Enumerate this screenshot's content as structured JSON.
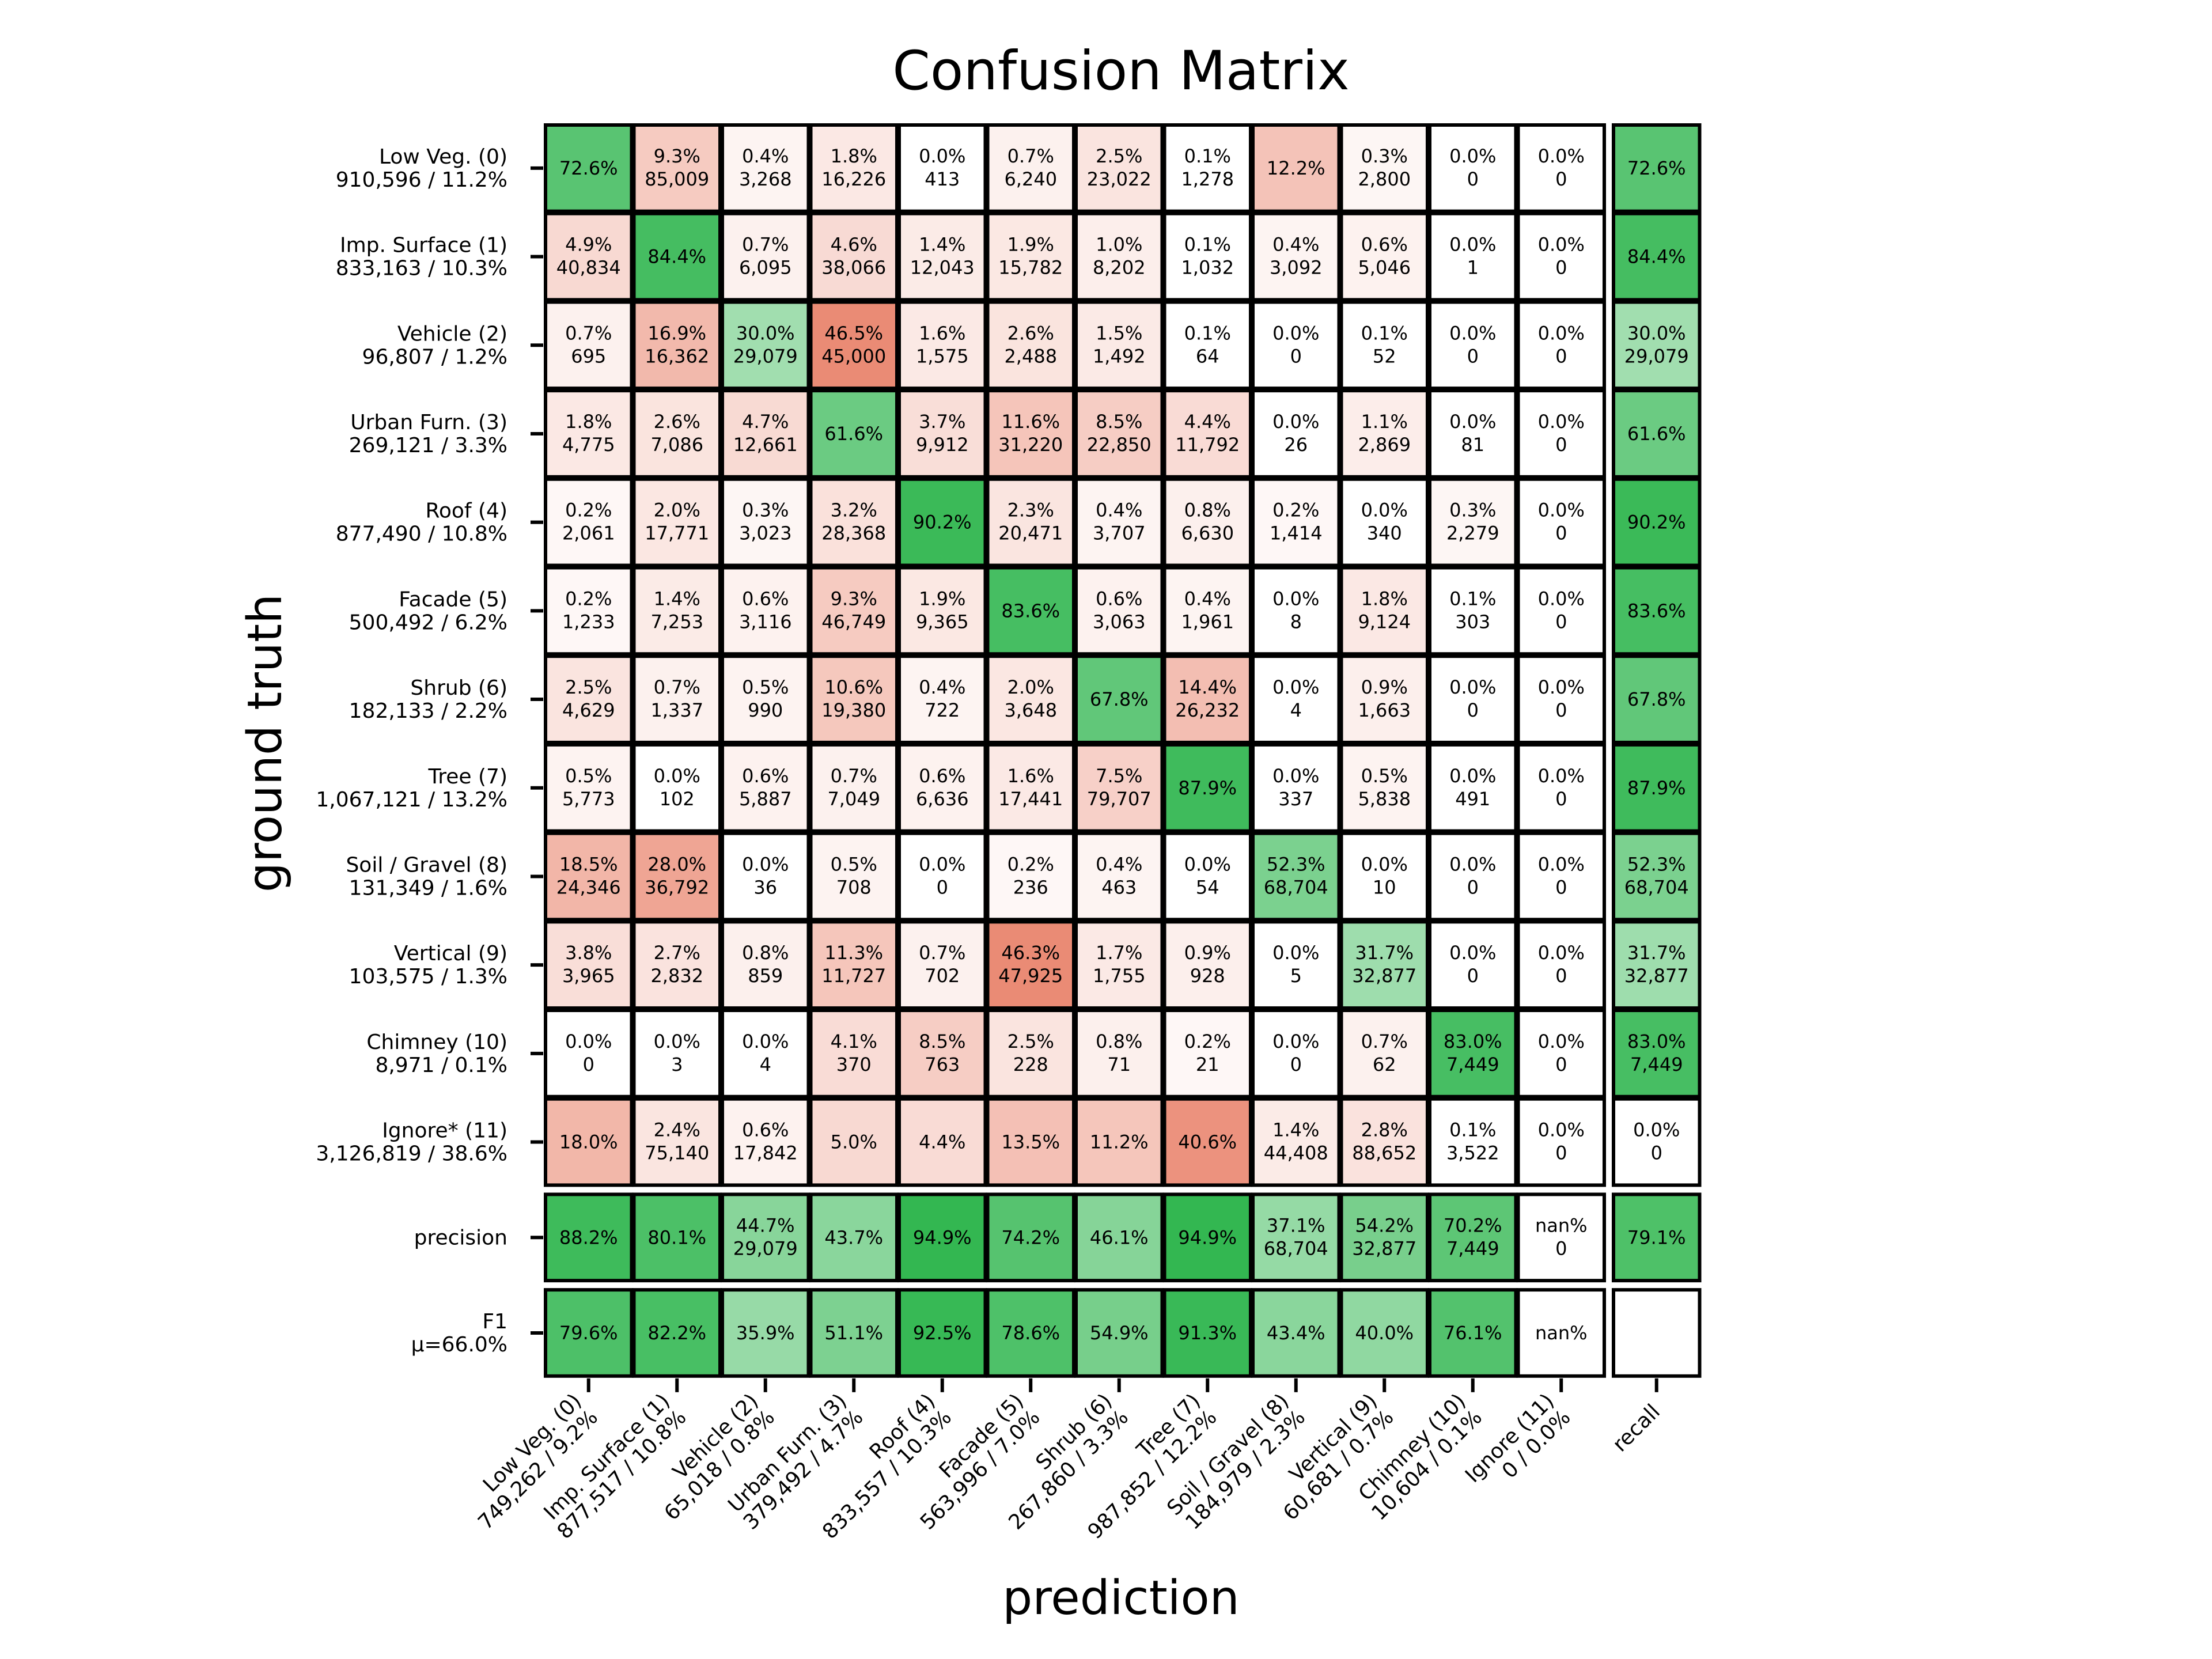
{
  "chart_data": {
    "type": "heatmap",
    "title": "Confusion Matrix",
    "xlabel": "prediction",
    "ylabel": "ground truth",
    "rows": [
      {
        "label": "Low Veg.  (0)",
        "sub": "910,596 / 11.2%",
        "cells": [
          [
            "72.6%",
            ""
          ],
          [
            "9.3%",
            "85,009"
          ],
          [
            "0.4%",
            "3,268"
          ],
          [
            "1.8%",
            "16,226"
          ],
          [
            "0.0%",
            "413"
          ],
          [
            "0.7%",
            "6,240"
          ],
          [
            "2.5%",
            "23,022"
          ],
          [
            "0.1%",
            "1,278"
          ],
          [
            "12.2%",
            ""
          ],
          [
            "0.3%",
            "2,800"
          ],
          [
            "0.0%",
            "0"
          ],
          [
            "0.0%",
            "0"
          ],
          [
            "72.6%",
            ""
          ]
        ]
      },
      {
        "label": "Imp. Surface  (1)",
        "sub": "833,163 / 10.3%",
        "cells": [
          [
            "4.9%",
            "40,834"
          ],
          [
            "84.4%",
            ""
          ],
          [
            "0.7%",
            "6,095"
          ],
          [
            "4.6%",
            "38,066"
          ],
          [
            "1.4%",
            "12,043"
          ],
          [
            "1.9%",
            "15,782"
          ],
          [
            "1.0%",
            "8,202"
          ],
          [
            "0.1%",
            "1,032"
          ],
          [
            "0.4%",
            "3,092"
          ],
          [
            "0.6%",
            "5,046"
          ],
          [
            "0.0%",
            "1"
          ],
          [
            "0.0%",
            "0"
          ],
          [
            "84.4%",
            ""
          ]
        ]
      },
      {
        "label": "Vehicle  (2)",
        "sub": "96,807 / 1.2%",
        "cells": [
          [
            "0.7%",
            "695"
          ],
          [
            "16.9%",
            "16,362"
          ],
          [
            "30.0%",
            "29,079"
          ],
          [
            "46.5%",
            "45,000"
          ],
          [
            "1.6%",
            "1,575"
          ],
          [
            "2.6%",
            "2,488"
          ],
          [
            "1.5%",
            "1,492"
          ],
          [
            "0.1%",
            "64"
          ],
          [
            "0.0%",
            "0"
          ],
          [
            "0.1%",
            "52"
          ],
          [
            "0.0%",
            "0"
          ],
          [
            "0.0%",
            "0"
          ],
          [
            "30.0%",
            "29,079"
          ]
        ]
      },
      {
        "label": "Urban Furn.  (3)",
        "sub": "269,121 / 3.3%",
        "cells": [
          [
            "1.8%",
            "4,775"
          ],
          [
            "2.6%",
            "7,086"
          ],
          [
            "4.7%",
            "12,661"
          ],
          [
            "61.6%",
            ""
          ],
          [
            "3.7%",
            "9,912"
          ],
          [
            "11.6%",
            "31,220"
          ],
          [
            "8.5%",
            "22,850"
          ],
          [
            "4.4%",
            "11,792"
          ],
          [
            "0.0%",
            "26"
          ],
          [
            "1.1%",
            "2,869"
          ],
          [
            "0.0%",
            "81"
          ],
          [
            "0.0%",
            "0"
          ],
          [
            "61.6%",
            ""
          ]
        ]
      },
      {
        "label": "Roof  (4)",
        "sub": "877,490 / 10.8%",
        "cells": [
          [
            "0.2%",
            "2,061"
          ],
          [
            "2.0%",
            "17,771"
          ],
          [
            "0.3%",
            "3,023"
          ],
          [
            "3.2%",
            "28,368"
          ],
          [
            "90.2%",
            ""
          ],
          [
            "2.3%",
            "20,471"
          ],
          [
            "0.4%",
            "3,707"
          ],
          [
            "0.8%",
            "6,630"
          ],
          [
            "0.2%",
            "1,414"
          ],
          [
            "0.0%",
            "340"
          ],
          [
            "0.3%",
            "2,279"
          ],
          [
            "0.0%",
            "0"
          ],
          [
            "90.2%",
            ""
          ]
        ]
      },
      {
        "label": "Facade  (5)",
        "sub": "500,492 / 6.2%",
        "cells": [
          [
            "0.2%",
            "1,233"
          ],
          [
            "1.4%",
            "7,253"
          ],
          [
            "0.6%",
            "3,116"
          ],
          [
            "9.3%",
            "46,749"
          ],
          [
            "1.9%",
            "9,365"
          ],
          [
            "83.6%",
            ""
          ],
          [
            "0.6%",
            "3,063"
          ],
          [
            "0.4%",
            "1,961"
          ],
          [
            "0.0%",
            "8"
          ],
          [
            "1.8%",
            "9,124"
          ],
          [
            "0.1%",
            "303"
          ],
          [
            "0.0%",
            "0"
          ],
          [
            "83.6%",
            ""
          ]
        ]
      },
      {
        "label": "Shrub  (6)",
        "sub": "182,133 / 2.2%",
        "cells": [
          [
            "2.5%",
            "4,629"
          ],
          [
            "0.7%",
            "1,337"
          ],
          [
            "0.5%",
            "990"
          ],
          [
            "10.6%",
            "19,380"
          ],
          [
            "0.4%",
            "722"
          ],
          [
            "2.0%",
            "3,648"
          ],
          [
            "67.8%",
            ""
          ],
          [
            "14.4%",
            "26,232"
          ],
          [
            "0.0%",
            "4"
          ],
          [
            "0.9%",
            "1,663"
          ],
          [
            "0.0%",
            "0"
          ],
          [
            "0.0%",
            "0"
          ],
          [
            "67.8%",
            ""
          ]
        ]
      },
      {
        "label": "Tree  (7)",
        "sub": "1,067,121 / 13.2%",
        "cells": [
          [
            "0.5%",
            "5,773"
          ],
          [
            "0.0%",
            "102"
          ],
          [
            "0.6%",
            "5,887"
          ],
          [
            "0.7%",
            "7,049"
          ],
          [
            "0.6%",
            "6,636"
          ],
          [
            "1.6%",
            "17,441"
          ],
          [
            "7.5%",
            "79,707"
          ],
          [
            "87.9%",
            ""
          ],
          [
            "0.0%",
            "337"
          ],
          [
            "0.5%",
            "5,838"
          ],
          [
            "0.0%",
            "491"
          ],
          [
            "0.0%",
            "0"
          ],
          [
            "87.9%",
            ""
          ]
        ]
      },
      {
        "label": "Soil / Gravel  (8)",
        "sub": "131,349 / 1.6%",
        "cells": [
          [
            "18.5%",
            "24,346"
          ],
          [
            "28.0%",
            "36,792"
          ],
          [
            "0.0%",
            "36"
          ],
          [
            "0.5%",
            "708"
          ],
          [
            "0.0%",
            "0"
          ],
          [
            "0.2%",
            "236"
          ],
          [
            "0.4%",
            "463"
          ],
          [
            "0.0%",
            "54"
          ],
          [
            "52.3%",
            "68,704"
          ],
          [
            "0.0%",
            "10"
          ],
          [
            "0.0%",
            "0"
          ],
          [
            "0.0%",
            "0"
          ],
          [
            "52.3%",
            "68,704"
          ]
        ]
      },
      {
        "label": "Vertical  (9)",
        "sub": "103,575 / 1.3%",
        "cells": [
          [
            "3.8%",
            "3,965"
          ],
          [
            "2.7%",
            "2,832"
          ],
          [
            "0.8%",
            "859"
          ],
          [
            "11.3%",
            "11,727"
          ],
          [
            "0.7%",
            "702"
          ],
          [
            "46.3%",
            "47,925"
          ],
          [
            "1.7%",
            "1,755"
          ],
          [
            "0.9%",
            "928"
          ],
          [
            "0.0%",
            "5"
          ],
          [
            "31.7%",
            "32,877"
          ],
          [
            "0.0%",
            "0"
          ],
          [
            "0.0%",
            "0"
          ],
          [
            "31.7%",
            "32,877"
          ]
        ]
      },
      {
        "label": "Chimney  (10)",
        "sub": "8,971 / 0.1%",
        "cells": [
          [
            "0.0%",
            "0"
          ],
          [
            "0.0%",
            "3"
          ],
          [
            "0.0%",
            "4"
          ],
          [
            "4.1%",
            "370"
          ],
          [
            "8.5%",
            "763"
          ],
          [
            "2.5%",
            "228"
          ],
          [
            "0.8%",
            "71"
          ],
          [
            "0.2%",
            "21"
          ],
          [
            "0.0%",
            "0"
          ],
          [
            "0.7%",
            "62"
          ],
          [
            "83.0%",
            "7,449"
          ],
          [
            "0.0%",
            "0"
          ],
          [
            "83.0%",
            "7,449"
          ]
        ]
      },
      {
        "label": "Ignore*  (11)",
        "sub": "3,126,819 / 38.6%",
        "cells": [
          [
            "18.0%",
            ""
          ],
          [
            "2.4%",
            "75,140"
          ],
          [
            "0.6%",
            "17,842"
          ],
          [
            "5.0%",
            ""
          ],
          [
            "4.4%",
            ""
          ],
          [
            "13.5%",
            ""
          ],
          [
            "11.2%",
            ""
          ],
          [
            "40.6%",
            ""
          ],
          [
            "1.4%",
            "44,408"
          ],
          [
            "2.8%",
            "88,652"
          ],
          [
            "0.1%",
            "3,522"
          ],
          [
            "0.0%",
            "0"
          ],
          [
            "0.0%",
            "0"
          ]
        ]
      },
      {
        "label": "precision",
        "sub": "",
        "cells": [
          [
            "88.2%",
            ""
          ],
          [
            "80.1%",
            ""
          ],
          [
            "44.7%",
            "29,079"
          ],
          [
            "43.7%",
            ""
          ],
          [
            "94.9%",
            ""
          ],
          [
            "74.2%",
            ""
          ],
          [
            "46.1%",
            ""
          ],
          [
            "94.9%",
            ""
          ],
          [
            "37.1%",
            "68,704"
          ],
          [
            "54.2%",
            "32,877"
          ],
          [
            "70.2%",
            "7,449"
          ],
          [
            "nan%",
            "0"
          ],
          [
            "79.1%",
            ""
          ]
        ]
      },
      {
        "label": "F1",
        "sub": "μ=66.0%",
        "cells": [
          [
            "79.6%",
            ""
          ],
          [
            "82.2%",
            ""
          ],
          [
            "35.9%",
            ""
          ],
          [
            "51.1%",
            ""
          ],
          [
            "92.5%",
            ""
          ],
          [
            "78.6%",
            ""
          ],
          [
            "54.9%",
            ""
          ],
          [
            "91.3%",
            ""
          ],
          [
            "43.4%",
            ""
          ],
          [
            "40.0%",
            ""
          ],
          [
            "76.1%",
            ""
          ],
          [
            "nan%",
            ""
          ],
          [
            "",
            ""
          ]
        ]
      }
    ],
    "columns": [
      {
        "label": "Low Veg.  (0)",
        "sub": "749,262 / 9.2%"
      },
      {
        "label": "Imp. Surface  (1)",
        "sub": "877,517 / 10.8%"
      },
      {
        "label": "Vehicle  (2)",
        "sub": "65,018 / 0.8%"
      },
      {
        "label": "Urban Furn.  (3)",
        "sub": "379,492 / 4.7%"
      },
      {
        "label": "Roof  (4)",
        "sub": "833,557 / 10.3%"
      },
      {
        "label": "Facade  (5)",
        "sub": "563,996 / 7.0%"
      },
      {
        "label": "Shrub  (6)",
        "sub": "267,860 / 3.3%"
      },
      {
        "label": "Tree  (7)",
        "sub": "987,852 / 12.2%"
      },
      {
        "label": "Soil / Gravel  (8)",
        "sub": "184,979 / 2.3%"
      },
      {
        "label": "Vertical  (9)",
        "sub": "60,681 / 0.7%"
      },
      {
        "label": "Chimney  (10)",
        "sub": "10,604 / 0.1%"
      },
      {
        "label": "Ignore  (11)",
        "sub": "0 / 0.0%"
      },
      {
        "label": "recall",
        "sub": ""
      }
    ],
    "colors": {
      "good": "#2ab44a",
      "bad": "#e9846d",
      "empty": "#ffffff",
      "border": "#000000"
    },
    "grid": false,
    "legend": "none"
  }
}
